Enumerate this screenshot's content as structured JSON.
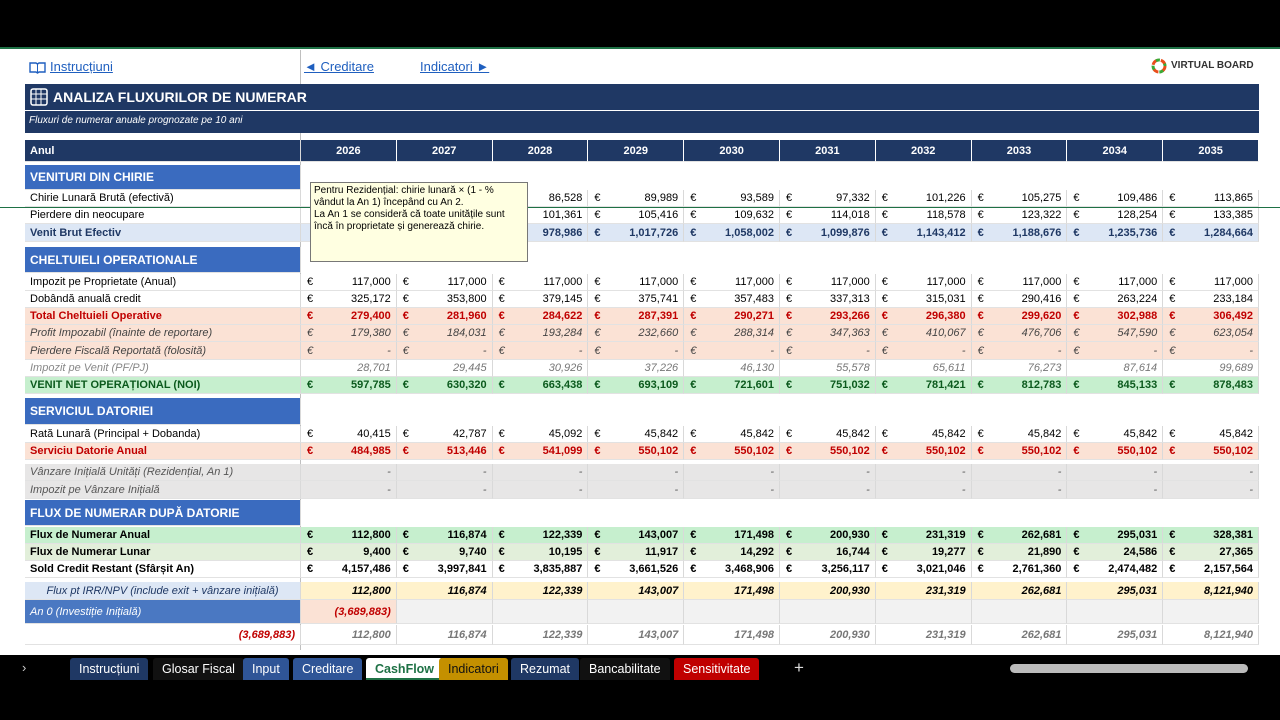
{
  "header": {
    "link_instructions": "Instrucțiuni",
    "link_prev": "◄ Creditare",
    "link_next": "Indicatori ►",
    "logo": "VIRTUAL BOARD"
  },
  "title": "ANALIZA FLUXURILOR DE NUMERAR",
  "subtitle": "Fluxuri de numerar anuale prognozate pe 10 ani",
  "table": {
    "year_label": "Anul",
    "years": [
      2026,
      2027,
      2028,
      2029,
      2030,
      2031,
      2032,
      2033,
      2034,
      2035
    ],
    "currency": "€",
    "rows": [
      {
        "section": "VENITURI DIN CHIRIE"
      },
      {
        "label": "Chirie Lunară Brută (efectivă)",
        "euro": true,
        "values": [
          null,
          null,
          "86,528",
          "89,989",
          "93,589",
          "97,332",
          "101,226",
          "105,275",
          "109,486",
          "113,865"
        ]
      },
      {
        "label": "Pierdere din neocupare",
        "euro": true,
        "values": [
          null,
          null,
          "101,361",
          "105,416",
          "109,632",
          "114,018",
          "118,578",
          "123,322",
          "128,254",
          "133,385"
        ]
      },
      {
        "label": "Venit Brut Efectiv",
        "euro": true,
        "values": [
          null,
          null,
          "978,986",
          "1,017,726",
          "1,058,002",
          "1,099,876",
          "1,143,412",
          "1,188,676",
          "1,235,736",
          "1,284,664"
        ]
      },
      {
        "section": "CHELTUIELI OPERATIONALE"
      },
      {
        "label": "Impozit pe Proprietate (Anual)",
        "euro": true,
        "values": [
          "117,000",
          "117,000",
          "117,000",
          "117,000",
          "117,000",
          "117,000",
          "117,000",
          "117,000",
          "117,000",
          "117,000"
        ]
      },
      {
        "label": "Dobândă anuală credit",
        "euro": true,
        "values": [
          "325,172",
          "353,800",
          "379,145",
          "375,741",
          "357,483",
          "337,313",
          "315,031",
          "290,416",
          "263,224",
          "233,184"
        ]
      },
      {
        "label": "Total Cheltuieli Operative",
        "euro": true,
        "values": [
          "279,400",
          "281,960",
          "284,622",
          "287,391",
          "290,271",
          "293,266",
          "296,380",
          "299,620",
          "302,988",
          "306,492"
        ]
      },
      {
        "label": "Profit Impozabil (înainte de reportare)",
        "euro": true,
        "values": [
          "179,380",
          "184,031",
          "193,284",
          "232,660",
          "288,314",
          "347,363",
          "410,067",
          "476,706",
          "547,590",
          "623,054"
        ]
      },
      {
        "label": "Pierdere Fiscală Reportată (folosită)",
        "euro": true,
        "values": [
          "-",
          "-",
          "-",
          "-",
          "-",
          "-",
          "-",
          "-",
          "-",
          "-"
        ]
      },
      {
        "label": "Impozit pe Venit (PF/PJ)",
        "euro": false,
        "values": [
          "28,701",
          "29,445",
          "30,926",
          "37,226",
          "46,130",
          "55,578",
          "65,611",
          "76,273",
          "87,614",
          "99,689"
        ]
      },
      {
        "label": "VENIT NET OPERAȚIONAL (NOI)",
        "euro": true,
        "values": [
          "597,785",
          "630,320",
          "663,438",
          "693,109",
          "721,601",
          "751,032",
          "781,421",
          "812,783",
          "845,133",
          "878,483"
        ]
      },
      {
        "section": "SERVICIUL DATORIEI"
      },
      {
        "label": "Rată Lunară (Principal + Dobanda)",
        "euro": true,
        "values": [
          "40,415",
          "42,787",
          "45,092",
          "45,842",
          "45,842",
          "45,842",
          "45,842",
          "45,842",
          "45,842",
          "45,842"
        ]
      },
      {
        "label": "Serviciu Datorie Anual",
        "euro": true,
        "values": [
          "484,985",
          "513,446",
          "541,099",
          "550,102",
          "550,102",
          "550,102",
          "550,102",
          "550,102",
          "550,102",
          "550,102"
        ]
      },
      {
        "label": "Vânzare Inițială Unități (Rezidențial, An 1)",
        "euro": false,
        "values": [
          "-",
          "-",
          "-",
          "-",
          "-",
          "-",
          "-",
          "-",
          "-",
          "-"
        ]
      },
      {
        "label": "Impozit pe Vânzare Inițială",
        "euro": false,
        "values": [
          "-",
          "-",
          "-",
          "-",
          "-",
          "-",
          "-",
          "-",
          "-",
          "-"
        ]
      },
      {
        "section": "FLUX DE NUMERAR DUPĂ DATORIE"
      },
      {
        "label": "Flux de Numerar Anual",
        "euro": true,
        "values": [
          "112,800",
          "116,874",
          "122,339",
          "143,007",
          "171,498",
          "200,930",
          "231,319",
          "262,681",
          "295,031",
          "328,381"
        ]
      },
      {
        "label": "Flux de Numerar Lunar",
        "euro": true,
        "values": [
          "9,400",
          "9,740",
          "10,195",
          "11,917",
          "14,292",
          "16,744",
          "19,277",
          "21,890",
          "24,586",
          "27,365"
        ]
      },
      {
        "label": "Sold Credit Restant (Sfârșit An)",
        "euro": true,
        "values": [
          "4,157,486",
          "3,997,841",
          "3,835,887",
          "3,661,526",
          "3,468,906",
          "3,256,117",
          "3,021,046",
          "2,761,360",
          "2,474,482",
          "2,157,564"
        ]
      },
      {
        "label": "Flux pt IRR/NPV (include exit + vânzare inițială)",
        "euro": false,
        "values": [
          "112,800",
          "116,874",
          "122,339",
          "143,007",
          "171,498",
          "200,930",
          "231,319",
          "262,681",
          "295,031",
          "8,121,940"
        ]
      },
      {
        "label": "An 0 (Investiție Inițială)",
        "euro": false,
        "values": [
          "(3,689,883)",
          null,
          null,
          null,
          null,
          null,
          null,
          null,
          null,
          null
        ]
      },
      {
        "label": "(3,689,883)",
        "euro": false,
        "values": [
          "112,800",
          "116,874",
          "122,339",
          "143,007",
          "171,498",
          "200,930",
          "231,319",
          "262,681",
          "295,031",
          "8,121,940"
        ]
      }
    ]
  },
  "comment": [
    "Pentru Rezidențial: chirie lunară × (1 - % vândut la An 1) începând cu An 2.",
    "La An 1 se consideră că toate unitățile sunt încă în proprietate și generează chirie."
  ],
  "tabs": [
    "Instrucțiuni",
    "Glosar Fiscal",
    "Input",
    "Creditare",
    "CashFlow",
    "Indicatori",
    "Rezumat",
    "Bancabilitate",
    "Sensitivitate"
  ]
}
